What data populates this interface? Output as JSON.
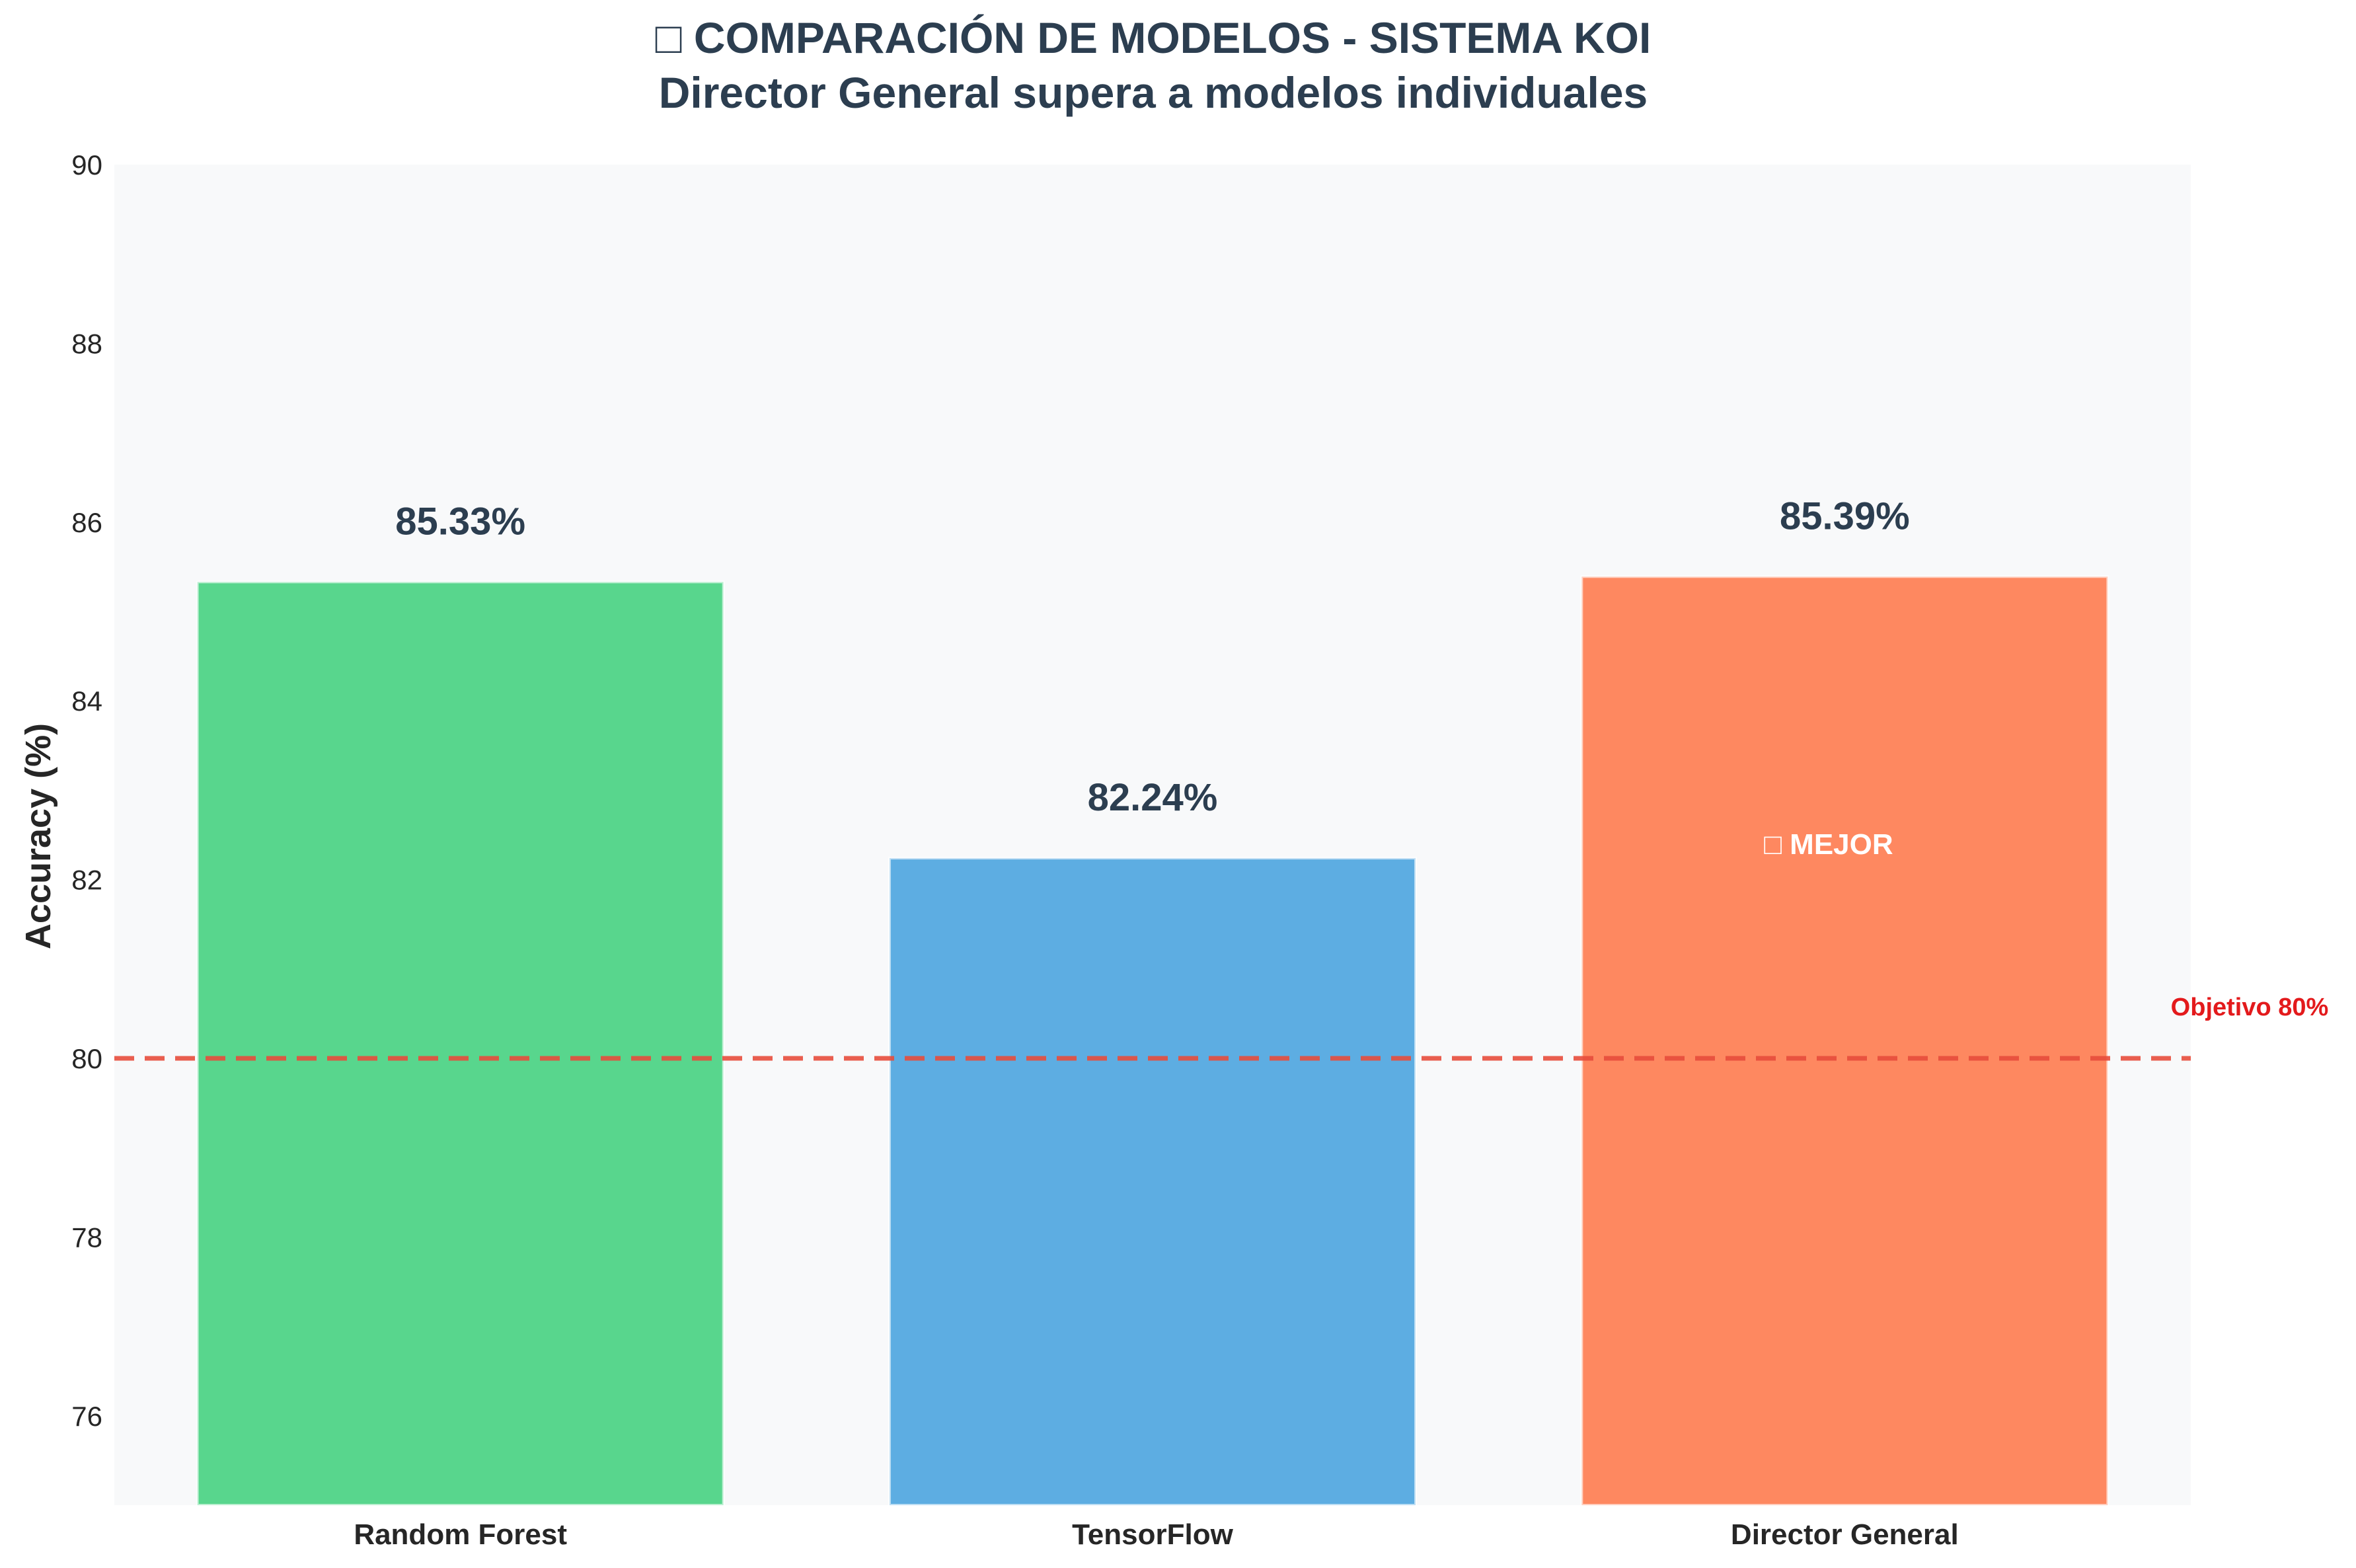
{
  "chart_data": {
    "type": "bar",
    "title": "□ COMPARACIÓN DE MODELOS - SISTEMA KOI",
    "subtitle": "Director General supera a modelos individuales",
    "ylabel": "Accuracy (%)",
    "xlabel": "",
    "ylim": [
      75,
      90
    ],
    "yticks": [
      76,
      78,
      80,
      82,
      84,
      86,
      88,
      90
    ],
    "ytick_labels": [
      "76",
      "78",
      "80",
      "82",
      "84",
      "86",
      "88",
      "90"
    ],
    "categories": [
      "Random Forest",
      "TensorFlow",
      "Director General"
    ],
    "values": [
      85.33,
      82.24,
      85.39
    ],
    "value_labels": [
      "85.33%",
      "82.24%",
      "85.39%"
    ],
    "colors": [
      "#58d68d",
      "#5dade2",
      "#fe8860"
    ],
    "grid": false,
    "reference_line": {
      "value": 80,
      "label": "Objetivo 80%",
      "color": "#e74c3c",
      "style": "dashed"
    },
    "annotation": {
      "text": "□ MEJOR",
      "category": "Director General"
    }
  }
}
